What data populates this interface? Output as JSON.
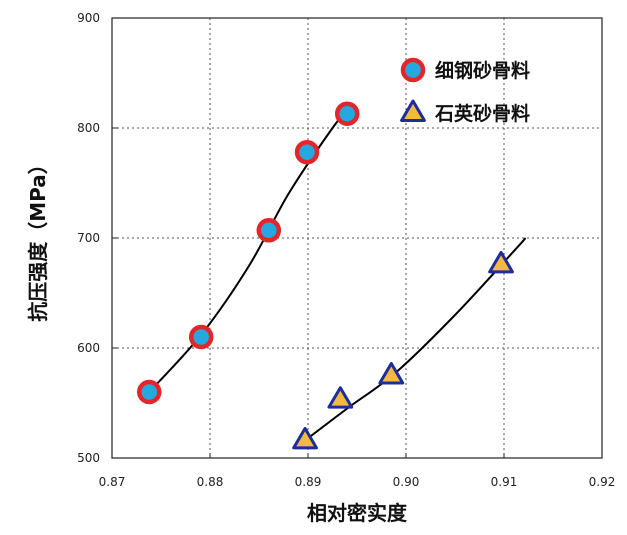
{
  "chart_data": {
    "type": "scatter",
    "title": "",
    "xlabel": "相对密实度",
    "ylabel": "抗压强度（MPa）",
    "xlim": [
      0.87,
      0.92
    ],
    "ylim": [
      500,
      900
    ],
    "xticks": [
      "0.87",
      "0.88",
      "0.89",
      "0.90",
      "0.91",
      "0.92"
    ],
    "yticks": [
      "500",
      "600",
      "700",
      "800",
      "900"
    ],
    "grid": true,
    "legend_position": "top-right",
    "series": [
      {
        "name": "细钢砂骨料",
        "marker": "circle",
        "fill_color": "#23a8e0",
        "edge_color": "#e3262b",
        "points": [
          {
            "x": 0.8738,
            "y": 560
          },
          {
            "x": 0.8791,
            "y": 610
          },
          {
            "x": 0.886,
            "y": 707
          },
          {
            "x": 0.8899,
            "y": 778
          },
          {
            "x": 0.894,
            "y": 813
          }
        ],
        "trend": [
          {
            "x": 0.8738,
            "y": 560
          },
          {
            "x": 0.8791,
            "y": 612
          },
          {
            "x": 0.884,
            "y": 675
          },
          {
            "x": 0.888,
            "y": 740
          },
          {
            "x": 0.8925,
            "y": 800
          },
          {
            "x": 0.8945,
            "y": 822
          }
        ]
      },
      {
        "name": "石英砂骨料",
        "marker": "triangle",
        "fill_color": "#f4b93f",
        "edge_color": "#1e2d9e",
        "points": [
          {
            "x": 0.8897,
            "y": 516
          },
          {
            "x": 0.8933,
            "y": 553
          },
          {
            "x": 0.8985,
            "y": 575
          },
          {
            "x": 0.9097,
            "y": 676
          }
        ],
        "trend": [
          {
            "x": 0.8897,
            "y": 516
          },
          {
            "x": 0.894,
            "y": 545
          },
          {
            "x": 0.899,
            "y": 578
          },
          {
            "x": 0.905,
            "y": 630
          },
          {
            "x": 0.911,
            "y": 688
          },
          {
            "x": 0.9122,
            "y": 700
          }
        ]
      }
    ]
  }
}
